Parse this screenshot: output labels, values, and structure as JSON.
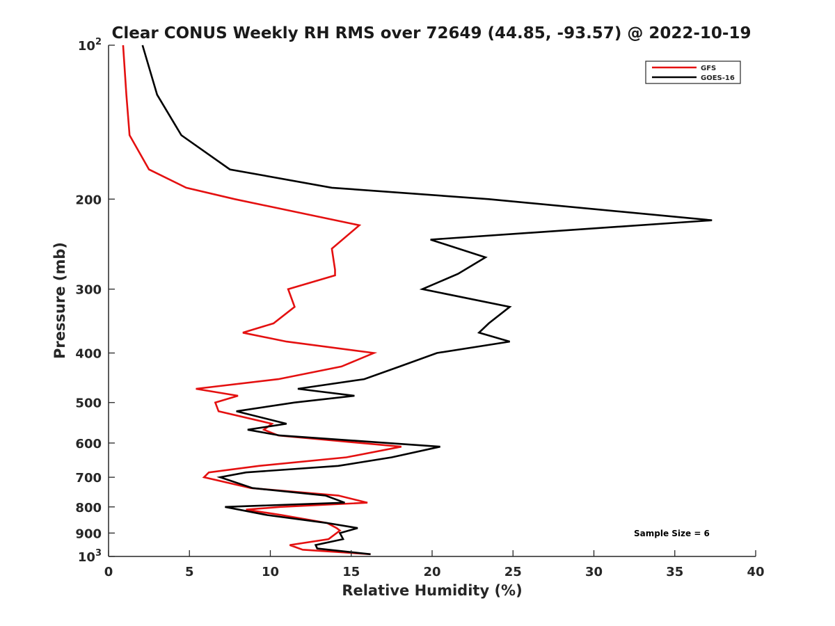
{
  "chart_data": {
    "type": "line",
    "title": "Clear CONUS Weekly RH RMS over 72649 (44.85, -93.57) @ 2022-10-19",
    "xlabel": "Relative Humidity (%)",
    "ylabel": "Pressure (mb)",
    "xlim": [
      0,
      40
    ],
    "ylim": [
      100,
      1000
    ],
    "y_scale": "log",
    "y_reversed": true,
    "grid": false,
    "legend_position": "top-right",
    "x_ticks": [
      "0",
      "5",
      "10",
      "15",
      "20",
      "25",
      "30",
      "35",
      "40"
    ],
    "y_ticks": [
      {
        "value": 100,
        "base": "10",
        "exp": "2"
      },
      {
        "value": 200,
        "label": "200"
      },
      {
        "value": 300,
        "label": "300"
      },
      {
        "value": 400,
        "label": "400"
      },
      {
        "value": 500,
        "label": "500"
      },
      {
        "value": 600,
        "label": "600"
      },
      {
        "value": 700,
        "label": "700"
      },
      {
        "value": 800,
        "label": "800"
      },
      {
        "value": 900,
        "label": "900"
      },
      {
        "value": 1000,
        "base": "10",
        "exp": "3"
      }
    ],
    "annotation": "Sample Size = 6",
    "series": [
      {
        "name": "GFS",
        "color": "#e41010",
        "points": [
          [
            0.9,
            100
          ],
          [
            1.1,
            125
          ],
          [
            1.3,
            150
          ],
          [
            2.5,
            175
          ],
          [
            4.8,
            190
          ],
          [
            7.8,
            200
          ],
          [
            15.5,
            225
          ],
          [
            13.8,
            250
          ],
          [
            14.0,
            275
          ],
          [
            14.0,
            282
          ],
          [
            11.1,
            300
          ],
          [
            11.5,
            325
          ],
          [
            10.2,
            350
          ],
          [
            8.3,
            365
          ],
          [
            11.0,
            380
          ],
          [
            16.4,
            400
          ],
          [
            14.4,
            425
          ],
          [
            10.5,
            450
          ],
          [
            5.4,
            470
          ],
          [
            8.0,
            485
          ],
          [
            6.6,
            500
          ],
          [
            6.8,
            520
          ],
          [
            10.1,
            550
          ],
          [
            9.6,
            565
          ],
          [
            10.5,
            580
          ],
          [
            18.1,
            610
          ],
          [
            14.7,
            640
          ],
          [
            9.3,
            665
          ],
          [
            6.2,
            685
          ],
          [
            5.9,
            700
          ],
          [
            8.8,
            735
          ],
          [
            14.2,
            760
          ],
          [
            16.0,
            785
          ],
          [
            10.6,
            800
          ],
          [
            8.5,
            810
          ],
          [
            10.7,
            830
          ],
          [
            13.5,
            860
          ],
          [
            14.1,
            880
          ],
          [
            14.3,
            890
          ],
          [
            13.6,
            925
          ],
          [
            11.2,
            950
          ],
          [
            12.0,
            970
          ],
          [
            16.2,
            990
          ]
        ]
      },
      {
        "name": "GOES-16",
        "color": "#000000",
        "points": [
          [
            2.1,
            100
          ],
          [
            3.0,
            125
          ],
          [
            4.5,
            150
          ],
          [
            7.5,
            175
          ],
          [
            13.8,
            190
          ],
          [
            23.5,
            200
          ],
          [
            37.3,
            220
          ],
          [
            19.9,
            240
          ],
          [
            23.3,
            260
          ],
          [
            21.6,
            280
          ],
          [
            19.4,
            300
          ],
          [
            24.8,
            325
          ],
          [
            23.5,
            350
          ],
          [
            22.9,
            365
          ],
          [
            24.8,
            380
          ],
          [
            20.3,
            400
          ],
          [
            18.0,
            425
          ],
          [
            15.8,
            450
          ],
          [
            11.7,
            470
          ],
          [
            15.2,
            485
          ],
          [
            11.5,
            500
          ],
          [
            7.9,
            520
          ],
          [
            11.0,
            550
          ],
          [
            8.6,
            565
          ],
          [
            10.6,
            580
          ],
          [
            20.5,
            610
          ],
          [
            17.5,
            640
          ],
          [
            14.2,
            665
          ],
          [
            8.5,
            685
          ],
          [
            6.9,
            700
          ],
          [
            8.9,
            735
          ],
          [
            13.4,
            760
          ],
          [
            14.6,
            785
          ],
          [
            7.2,
            800
          ],
          [
            9.8,
            830
          ],
          [
            13.5,
            860
          ],
          [
            15.4,
            880
          ],
          [
            14.3,
            900
          ],
          [
            14.5,
            925
          ],
          [
            12.8,
            950
          ],
          [
            12.9,
            965
          ],
          [
            16.2,
            990
          ]
        ]
      }
    ]
  }
}
